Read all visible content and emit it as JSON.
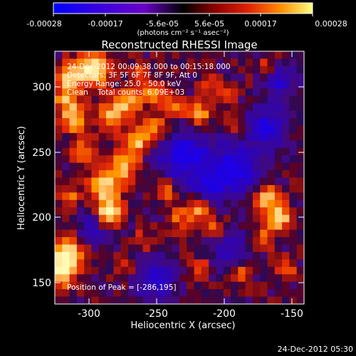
{
  "colorbar": {
    "ticks": [
      "-0.00028",
      "-0.00017",
      "-5.6e-05",
      "5.6e-05",
      "0.00017",
      "0.00028"
    ],
    "units_label": "(photons cm⁻² s⁻¹ asec⁻²)"
  },
  "title": "Reconstructed RHESSI Image",
  "info": {
    "line1": "24-Dec-2012 00:09:38.000 to 00:15:18.000",
    "line2": "Detectors: 3F 5F 6F 7F 8F 9F, Att 0",
    "line3": "Energy Range: 25.0 - 50.0 keV",
    "line4": "Clean    Total counts: 6.09E+03",
    "peak": "Position of Peak = [-286,195]"
  },
  "x_axis": {
    "label": "Heliocentric X (arcsec)",
    "ticks": [
      "-300",
      "-250",
      "-200",
      "-150"
    ],
    "range": [
      -333,
      -137
    ]
  },
  "y_axis": {
    "label": "Heliocentric Y (arcsec)",
    "ticks": [
      "150",
      "200",
      "250",
      "300"
    ],
    "range": [
      136,
      329
    ]
  },
  "footer_timestamp": "24-Dec-2012 05:30",
  "colors": {
    "background": "#000000",
    "foreground": "#ffffff"
  }
}
